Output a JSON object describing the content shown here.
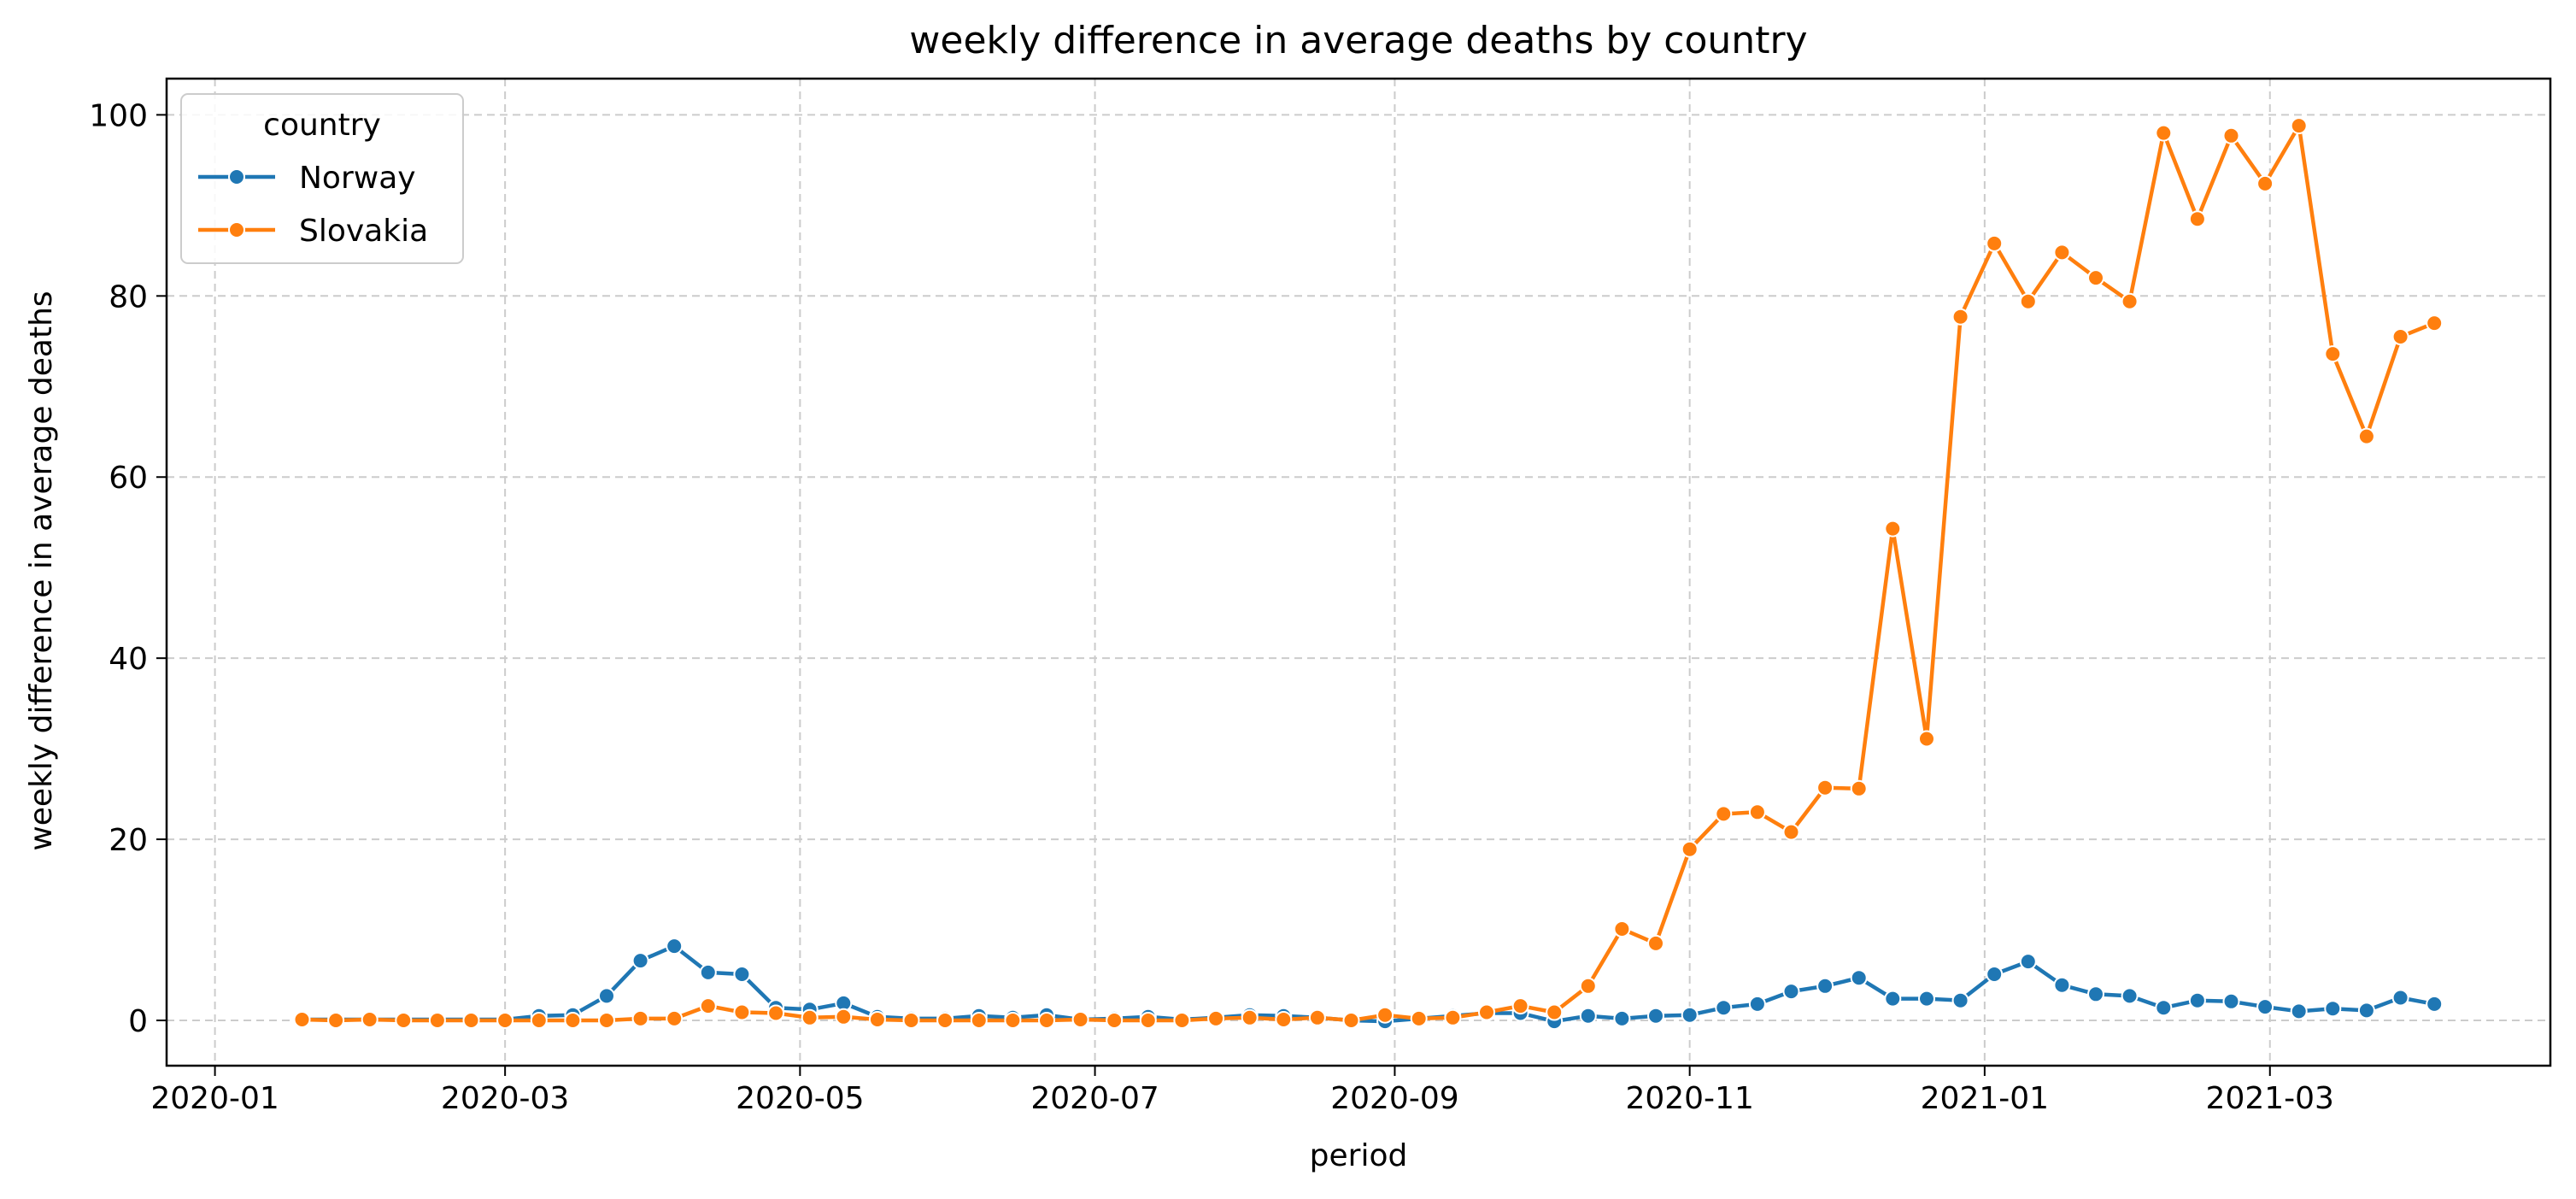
{
  "chart_data": {
    "type": "line",
    "title": "weekly difference in average deaths by country",
    "xlabel": "period",
    "ylabel": "weekly difference in average deaths",
    "x_ticks": [
      "2020-01",
      "2020-03",
      "2020-05",
      "2020-07",
      "2020-09",
      "2020-11",
      "2021-01",
      "2021-03"
    ],
    "y_ticks": [
      "0",
      "20",
      "40",
      "60",
      "80",
      "100"
    ],
    "xlim": [
      "2019-12-22",
      "2021-04-28"
    ],
    "ylim": [
      -5,
      104
    ],
    "grid": true,
    "legend": {
      "title": "country",
      "placement": "top-left"
    },
    "x": [
      "2020-01-19",
      "2020-01-26",
      "2020-02-02",
      "2020-02-09",
      "2020-02-16",
      "2020-02-23",
      "2020-03-01",
      "2020-03-08",
      "2020-03-15",
      "2020-03-22",
      "2020-03-29",
      "2020-04-05",
      "2020-04-12",
      "2020-04-19",
      "2020-04-26",
      "2020-05-03",
      "2020-05-10",
      "2020-05-17",
      "2020-05-24",
      "2020-05-31",
      "2020-06-07",
      "2020-06-14",
      "2020-06-21",
      "2020-06-28",
      "2020-07-05",
      "2020-07-12",
      "2020-07-19",
      "2020-07-26",
      "2020-08-02",
      "2020-08-09",
      "2020-08-16",
      "2020-08-23",
      "2020-08-30",
      "2020-09-06",
      "2020-09-13",
      "2020-09-20",
      "2020-09-27",
      "2020-10-04",
      "2020-10-11",
      "2020-10-18",
      "2020-10-25",
      "2020-11-01",
      "2020-11-08",
      "2020-11-15",
      "2020-11-22",
      "2020-11-29",
      "2020-12-06",
      "2020-12-13",
      "2020-12-20",
      "2020-12-27",
      "2021-01-03",
      "2021-01-10",
      "2021-01-17",
      "2021-01-24",
      "2021-01-31",
      "2021-02-07",
      "2021-02-14",
      "2021-02-21",
      "2021-02-28",
      "2021-03-07",
      "2021-03-14",
      "2021-03-21",
      "2021-03-28",
      "2021-04-04"
    ],
    "series": [
      {
        "name": "Norway",
        "color": "#1f77b4",
        "values": [
          0.1,
          0.1,
          0.1,
          0.1,
          0.1,
          0.1,
          0.1,
          0.5,
          0.6,
          2.7,
          6.6,
          8.2,
          5.3,
          5.1,
          1.4,
          1.2,
          1.9,
          0.4,
          0.2,
          0.2,
          0.5,
          0.3,
          0.6,
          0.1,
          0.2,
          0.4,
          0.1,
          0.3,
          0.6,
          0.5,
          0.3,
          0.0,
          -0.1,
          0.2,
          0.5,
          0.8,
          0.8,
          -0.1,
          0.5,
          0.2,
          0.5,
          0.6,
          1.4,
          1.8,
          3.2,
          3.8,
          4.7,
          2.4,
          2.4,
          2.2,
          5.1,
          6.5,
          3.9,
          2.9,
          2.7,
          1.4,
          2.2,
          2.1,
          1.5,
          1.0,
          1.3,
          1.1,
          2.5,
          1.8
        ]
      },
      {
        "name": "Slovakia",
        "color": "#ff7f0e",
        "values": [
          0.1,
          0.0,
          0.1,
          0.0,
          0.0,
          0.0,
          0.0,
          0.0,
          0.0,
          0.0,
          0.2,
          0.2,
          1.6,
          0.9,
          0.8,
          0.3,
          0.4,
          0.1,
          0.0,
          0.0,
          0.0,
          0.0,
          0.0,
          0.1,
          0.0,
          0.0,
          0.0,
          0.2,
          0.3,
          0.1,
          0.3,
          0.0,
          0.6,
          0.2,
          0.3,
          0.9,
          1.6,
          0.9,
          3.8,
          10.1,
          8.5,
          18.9,
          22.8,
          23.0,
          20.8,
          25.7,
          25.6,
          54.3,
          31.1,
          77.7,
          85.8,
          79.4,
          84.8,
          82.0,
          79.4,
          98.0,
          88.5,
          97.7,
          92.4,
          98.8,
          73.6,
          64.5,
          75.5,
          77.0
        ]
      }
    ]
  }
}
